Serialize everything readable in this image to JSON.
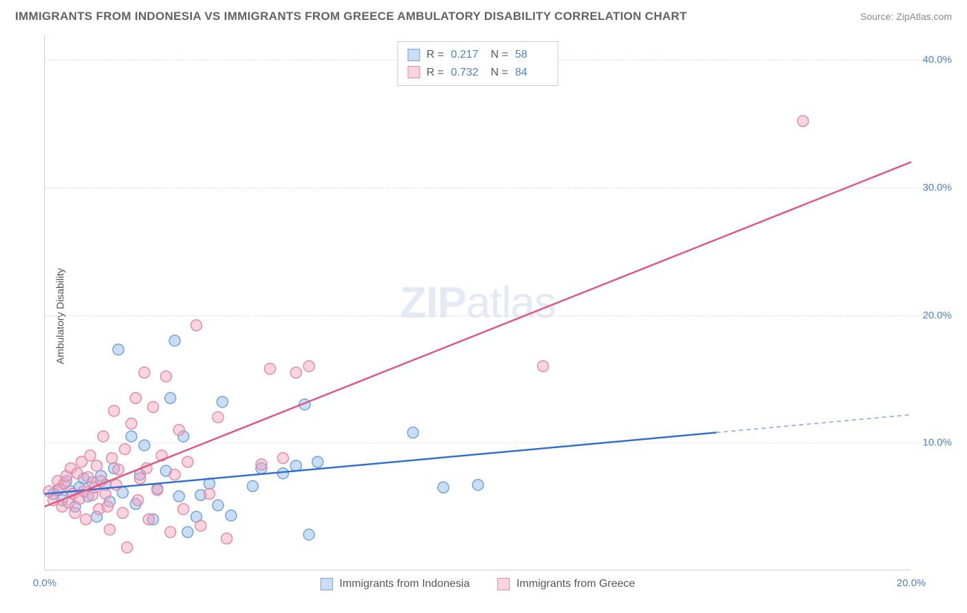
{
  "title": "IMMIGRANTS FROM INDONESIA VS IMMIGRANTS FROM GREECE AMBULATORY DISABILITY CORRELATION CHART",
  "source": "Source: ZipAtlas.com",
  "y_axis_label": "Ambulatory Disability",
  "watermark_1": "ZIP",
  "watermark_2": "atlas",
  "chart": {
    "type": "scatter",
    "xlim": [
      0,
      20
    ],
    "ylim": [
      0,
      42
    ],
    "x_ticks": [
      {
        "pos": 0,
        "label": "0.0%"
      },
      {
        "pos": 20,
        "label": "20.0%"
      }
    ],
    "y_ticks": [
      {
        "pos": 10,
        "label": "10.0%"
      },
      {
        "pos": 20,
        "label": "20.0%"
      },
      {
        "pos": 30,
        "label": "30.0%"
      },
      {
        "pos": 40,
        "label": "40.0%"
      }
    ],
    "grid_color": "#e4e4e4",
    "background": "#ffffff",
    "axis_color": "#d0d0d0",
    "tick_label_color": "#4a7fd6",
    "axis_label_color": "#555555",
    "series": [
      {
        "name": "Immigrants from Indonesia",
        "marker_color_fill": "rgba(137,180,235,0.45)",
        "marker_color_stroke": "#6fa3db",
        "line_color": "#2f6fd0",
        "line_dash_color": "#9cb9e3",
        "R": "0.217",
        "N": "58",
        "regression": {
          "x1": 0,
          "y1": 6.0,
          "x2": 15.5,
          "y2": 10.8,
          "x2_solid_end": 15.5,
          "x3": 20,
          "y3": 12.2
        },
        "points": [
          [
            0.2,
            6.0
          ],
          [
            0.3,
            6.3
          ],
          [
            0.4,
            5.5
          ],
          [
            0.5,
            7.0
          ],
          [
            0.6,
            6.2
          ],
          [
            0.7,
            5.0
          ],
          [
            0.8,
            6.5
          ],
          [
            0.9,
            7.2
          ],
          [
            1.0,
            5.8
          ],
          [
            1.1,
            6.9
          ],
          [
            1.2,
            4.2
          ],
          [
            1.3,
            7.4
          ],
          [
            1.4,
            6.7
          ],
          [
            1.5,
            5.4
          ],
          [
            1.6,
            8.0
          ],
          [
            1.7,
            17.3
          ],
          [
            1.8,
            6.1
          ],
          [
            2.0,
            10.5
          ],
          [
            2.1,
            5.2
          ],
          [
            2.2,
            7.5
          ],
          [
            2.3,
            9.8
          ],
          [
            2.5,
            4.0
          ],
          [
            2.6,
            6.4
          ],
          [
            2.8,
            7.8
          ],
          [
            2.9,
            13.5
          ],
          [
            3.0,
            18.0
          ],
          [
            3.1,
            5.8
          ],
          [
            3.2,
            10.5
          ],
          [
            3.3,
            3.0
          ],
          [
            3.5,
            4.2
          ],
          [
            3.6,
            5.9
          ],
          [
            3.8,
            6.8
          ],
          [
            4.0,
            5.1
          ],
          [
            4.1,
            13.2
          ],
          [
            4.3,
            4.3
          ],
          [
            4.8,
            6.6
          ],
          [
            5.0,
            8.0
          ],
          [
            5.5,
            7.6
          ],
          [
            5.8,
            8.2
          ],
          [
            6.0,
            13.0
          ],
          [
            6.1,
            2.8
          ],
          [
            6.3,
            8.5
          ],
          [
            8.5,
            10.8
          ],
          [
            9.2,
            6.5
          ],
          [
            10.0,
            6.7
          ]
        ]
      },
      {
        "name": "Immigrants from Greece",
        "marker_color_fill": "rgba(245,160,185,0.45)",
        "marker_color_stroke": "#e68aa4",
        "line_color": "#e25580",
        "R": "0.732",
        "N": "84",
        "regression": {
          "x1": 0,
          "y1": 5.0,
          "x2": 20,
          "y2": 32.0
        },
        "points": [
          [
            0.1,
            6.2
          ],
          [
            0.2,
            5.5
          ],
          [
            0.3,
            7.0
          ],
          [
            0.35,
            6.4
          ],
          [
            0.4,
            5.0
          ],
          [
            0.45,
            6.8
          ],
          [
            0.5,
            7.4
          ],
          [
            0.55,
            5.3
          ],
          [
            0.6,
            8.0
          ],
          [
            0.65,
            6.0
          ],
          [
            0.7,
            4.5
          ],
          [
            0.75,
            7.6
          ],
          [
            0.8,
            5.6
          ],
          [
            0.85,
            8.5
          ],
          [
            0.9,
            6.2
          ],
          [
            0.95,
            4.0
          ],
          [
            1.0,
            7.3
          ],
          [
            1.05,
            9.0
          ],
          [
            1.1,
            5.9
          ],
          [
            1.15,
            6.5
          ],
          [
            1.2,
            8.2
          ],
          [
            1.25,
            4.8
          ],
          [
            1.3,
            7.0
          ],
          [
            1.35,
            10.5
          ],
          [
            1.4,
            6.0
          ],
          [
            1.45,
            5.0
          ],
          [
            1.5,
            3.2
          ],
          [
            1.55,
            8.8
          ],
          [
            1.6,
            12.5
          ],
          [
            1.65,
            6.7
          ],
          [
            1.7,
            7.9
          ],
          [
            1.8,
            4.5
          ],
          [
            1.85,
            9.5
          ],
          [
            1.9,
            1.8
          ],
          [
            2.0,
            11.5
          ],
          [
            2.1,
            13.5
          ],
          [
            2.15,
            5.5
          ],
          [
            2.2,
            7.2
          ],
          [
            2.3,
            15.5
          ],
          [
            2.35,
            8.0
          ],
          [
            2.4,
            4.0
          ],
          [
            2.5,
            12.8
          ],
          [
            2.6,
            6.3
          ],
          [
            2.7,
            9.0
          ],
          [
            2.8,
            15.2
          ],
          [
            2.9,
            3.0
          ],
          [
            3.0,
            7.5
          ],
          [
            3.1,
            11.0
          ],
          [
            3.2,
            4.8
          ],
          [
            3.3,
            8.5
          ],
          [
            3.5,
            19.2
          ],
          [
            3.6,
            3.5
          ],
          [
            3.8,
            6.0
          ],
          [
            4.0,
            12.0
          ],
          [
            4.2,
            2.5
          ],
          [
            5.0,
            8.3
          ],
          [
            5.2,
            15.8
          ],
          [
            5.5,
            8.8
          ],
          [
            5.8,
            15.5
          ],
          [
            6.1,
            16.0
          ],
          [
            11.5,
            16.0
          ],
          [
            17.5,
            35.2
          ]
        ]
      }
    ]
  },
  "legend_top": {
    "rows": [
      {
        "series_idx": 0
      },
      {
        "series_idx": 1
      }
    ],
    "R_label": "R  =",
    "N_label": "N  ="
  },
  "legend_bottom": {
    "items": [
      {
        "series_idx": 0
      },
      {
        "series_idx": 1
      }
    ]
  }
}
